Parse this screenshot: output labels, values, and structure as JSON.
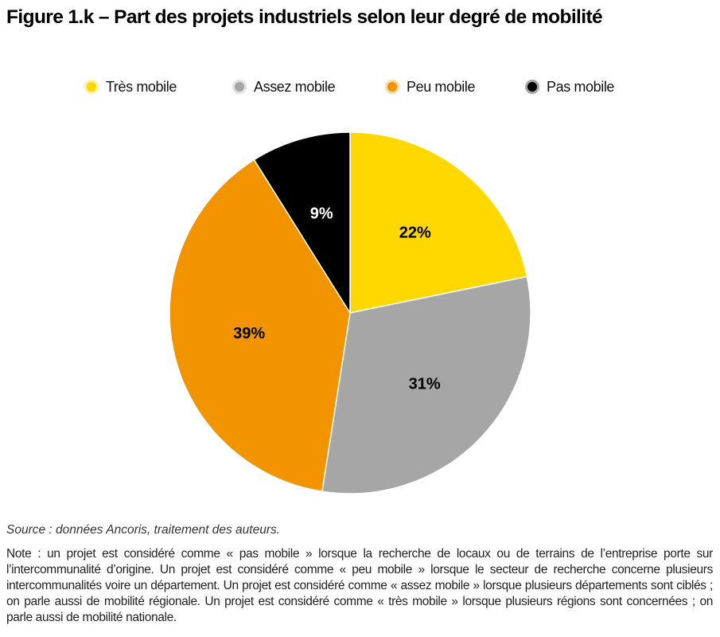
{
  "figure": {
    "title": "Figure 1.k – Part des projets industriels selon leur degré de mobilité",
    "source": "Source : données Ancoris, traitement des auteurs.",
    "note": "Note : un projet est considéré comme « pas mobile » lorsque la recherche de locaux ou de terrains de l’entreprise porte sur l’intercommunalité d’origine. Un projet est considéré comme « peu mobile » lorsque le secteur de recherche concerne plusieurs intercommunalités voire un département. Un projet est considéré comme « assez mobile » lorsque plusieurs départements sont ciblés ; on parle aussi de mobilité régionale. Un projet est considéré comme « très mobile » lorsque plusieurs régions sont concernées ; on parle aussi de mobilité nationale."
  },
  "chart_data": {
    "type": "pie",
    "categories": [
      "Très mobile",
      "Assez mobile",
      "Peu mobile",
      "Pas mobile"
    ],
    "values": [
      22,
      31,
      39,
      9
    ],
    "value_labels": [
      "22%",
      "31%",
      "39%",
      "9%"
    ],
    "unit": "%",
    "colors": [
      "#FFD800",
      "#A6A6A6",
      "#F29400",
      "#000000"
    ],
    "label_colors": [
      "#000000",
      "#000000",
      "#000000",
      "#FFFFFF"
    ],
    "start_angle": "12 o'clock",
    "direction": "clockwise",
    "legend": "top-center",
    "legend_markers": "dot with light ring"
  }
}
